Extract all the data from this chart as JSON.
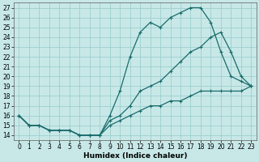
{
  "xlabel": "Humidex (Indice chaleur)",
  "background_color": "#c8e8e8",
  "grid_color": "#9ecece",
  "line_color": "#1a6b6b",
  "xlim": [
    -0.5,
    23.5
  ],
  "ylim": [
    13.5,
    27.5
  ],
  "xticks": [
    0,
    1,
    2,
    3,
    4,
    5,
    6,
    7,
    8,
    9,
    10,
    11,
    12,
    13,
    14,
    15,
    16,
    17,
    18,
    19,
    20,
    21,
    22,
    23
  ],
  "yticks": [
    14,
    15,
    16,
    17,
    18,
    19,
    20,
    21,
    22,
    23,
    24,
    25,
    26,
    27
  ],
  "line1_x": [
    0,
    1,
    2,
    3,
    4,
    5,
    6,
    7,
    8,
    9,
    10,
    11,
    12,
    13,
    14,
    15,
    16,
    17,
    18,
    19,
    20,
    21,
    22,
    23
  ],
  "line1_y": [
    16,
    15,
    15,
    14.5,
    14.5,
    14.5,
    14,
    14,
    14,
    15.5,
    16,
    17,
    18.5,
    19,
    19.5,
    20.5,
    21.5,
    22.5,
    23,
    24,
    24.5,
    22.5,
    20,
    19
  ],
  "line2_x": [
    0,
    1,
    2,
    3,
    4,
    5,
    6,
    7,
    8,
    9,
    10,
    11,
    12,
    13,
    14,
    15,
    16,
    17,
    18,
    19,
    20,
    21,
    22,
    23
  ],
  "line2_y": [
    16,
    15,
    15,
    14.5,
    14.5,
    14.5,
    14,
    14,
    14,
    16,
    18.5,
    22,
    24.5,
    25.5,
    25,
    26,
    26.5,
    27,
    27,
    25.5,
    22.5,
    20,
    19.5,
    19
  ],
  "line3_x": [
    0,
    1,
    2,
    3,
    4,
    5,
    6,
    7,
    8,
    9,
    10,
    11,
    12,
    13,
    14,
    15,
    16,
    17,
    18,
    19,
    20,
    21,
    22,
    23
  ],
  "line3_y": [
    16,
    15,
    15,
    14.5,
    14.5,
    14.5,
    14,
    14,
    14,
    15,
    15.5,
    16,
    16.5,
    17,
    17,
    17.5,
    17.5,
    18,
    18.5,
    18.5,
    18.5,
    18.5,
    18.5,
    19
  ],
  "tick_fontsize": 5.5,
  "xlabel_fontsize": 6.5,
  "marker_size": 3,
  "line_width": 0.9
}
